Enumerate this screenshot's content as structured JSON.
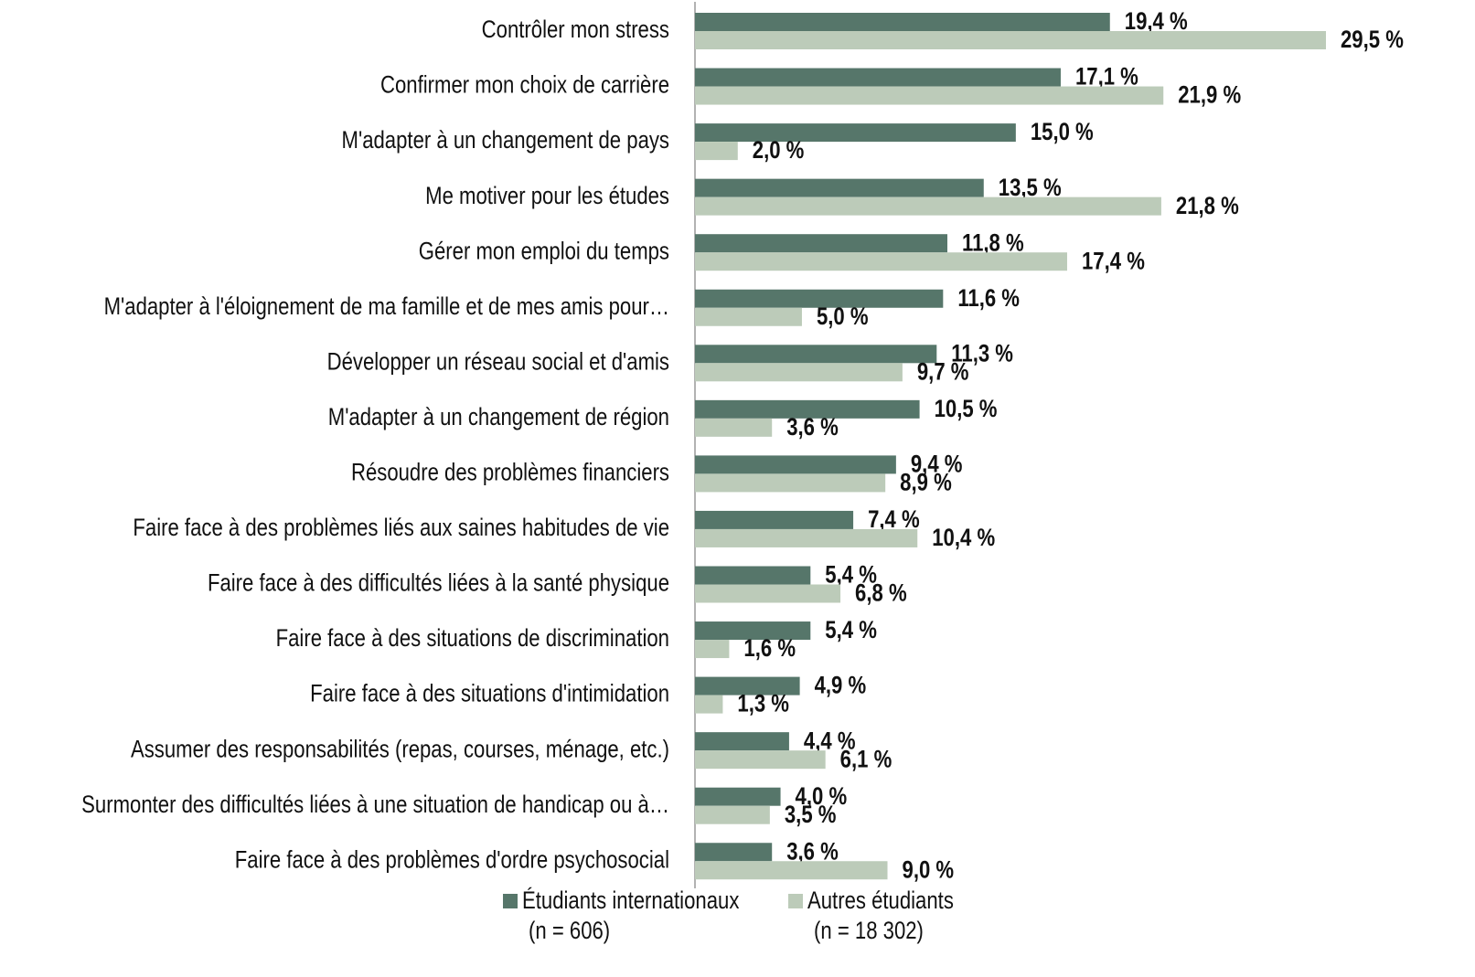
{
  "chart_data": {
    "type": "hbar",
    "categories": [
      "Contrôler mon stress",
      "Confirmer mon choix de carrière",
      "M'adapter à un changement de pays",
      "Me motiver pour les études",
      "Gérer mon emploi du temps",
      "M'adapter à l'éloignement de ma famille et de mes amis pour…",
      "Développer un réseau social et d'amis",
      "M'adapter à un changement de région",
      "Résoudre des problèmes financiers",
      "Faire face à des problèmes liés aux saines habitudes de vie",
      "Faire face à des difficultés liées à la santé physique",
      "Faire face à des situations de discrimination",
      "Faire face à des situations d'intimidation",
      "Assumer des responsabilités (repas, courses, ménage, etc.)",
      "Surmonter des difficultés liées à une situation de handicap ou à…",
      "Faire face à des problèmes d'ordre psychosocial"
    ],
    "series": [
      {
        "name": "Étudiants internationaux",
        "note": "(n =  606)",
        "color": "#56766a",
        "values": [
          19.4,
          17.1,
          15.0,
          13.5,
          11.8,
          11.6,
          11.3,
          10.5,
          9.4,
          7.4,
          5.4,
          5.4,
          4.9,
          4.4,
          4.0,
          3.6
        ],
        "value_labels": [
          "19,4 %",
          "17,1 %",
          "15,0 %",
          "13,5 %",
          "11,8 %",
          "11,6 %",
          "11,3 %",
          "10,5 %",
          "9,4 %",
          "7,4 %",
          "5,4 %",
          "5,4 %",
          "4,9 %",
          "4,4 %",
          "4,0 %",
          "3,6 %"
        ]
      },
      {
        "name": "Autres étudiants",
        "note": "(n = 18 302)",
        "color": "#bccbb9",
        "values": [
          29.5,
          21.9,
          2.0,
          21.8,
          17.4,
          5.0,
          9.7,
          3.6,
          8.9,
          10.4,
          6.8,
          1.6,
          1.3,
          6.1,
          3.5,
          9.0
        ],
        "value_labels": [
          "29,5 %",
          "21,9 %",
          "2,0 %",
          "21,8 %",
          "17,4 %",
          "5,0 %",
          "9,7 %",
          "3,6 %",
          "8,9 %",
          "10,4 %",
          "6,8 %",
          "1,6 %",
          "1,3 %",
          "6,1 %",
          "3,5 %",
          "9,0 %"
        ]
      }
    ],
    "xlim": [
      0,
      30
    ],
    "legend": "bottom"
  }
}
